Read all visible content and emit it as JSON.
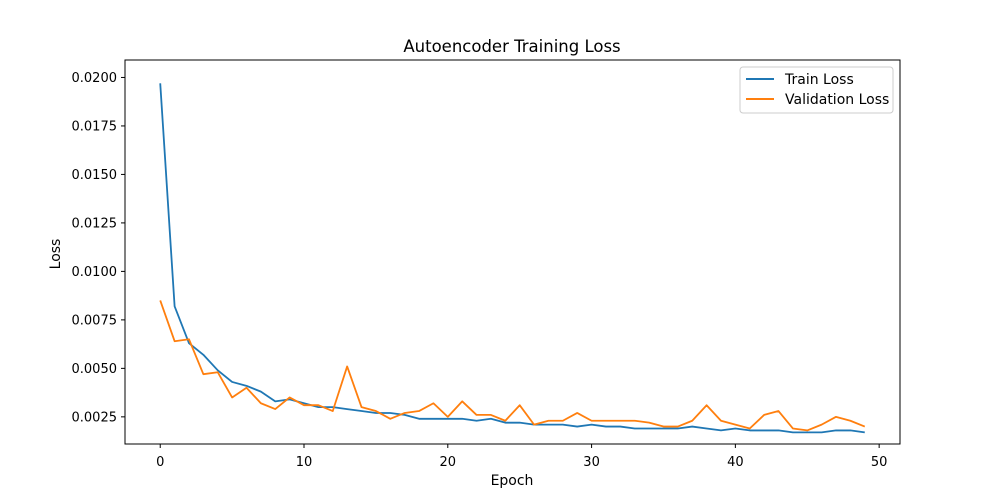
{
  "chart_data": {
    "type": "line",
    "title": "Autoencoder Training Loss",
    "xlabel": "Epoch",
    "ylabel": "Loss",
    "xlim": [
      -2.45,
      51.45
    ],
    "ylim": [
      0.0011,
      0.0209
    ],
    "xticks": [
      0,
      10,
      20,
      30,
      40,
      50
    ],
    "xtick_labels": [
      "0",
      "10",
      "20",
      "30",
      "40",
      "50"
    ],
    "yticks": [
      0.0025,
      0.005,
      0.0075,
      0.01,
      0.0125,
      0.015,
      0.0175,
      0.02
    ],
    "ytick_labels": [
      "0.0025",
      "0.0050",
      "0.0075",
      "0.0100",
      "0.0125",
      "0.0150",
      "0.0175",
      "0.0200"
    ],
    "grid": false,
    "legend": "top-right",
    "x": [
      0,
      1,
      2,
      3,
      4,
      5,
      6,
      7,
      8,
      9,
      10,
      11,
      12,
      13,
      14,
      15,
      16,
      17,
      18,
      19,
      20,
      21,
      22,
      23,
      24,
      25,
      26,
      27,
      28,
      29,
      30,
      31,
      32,
      33,
      34,
      35,
      36,
      37,
      38,
      39,
      40,
      41,
      42,
      43,
      44,
      45,
      46,
      47,
      48,
      49
    ],
    "series": [
      {
        "name": "Train Loss",
        "color": "#1f77b4",
        "values": [
          0.0197,
          0.0082,
          0.0063,
          0.0057,
          0.0049,
          0.0043,
          0.0041,
          0.0038,
          0.0033,
          0.0034,
          0.0032,
          0.003,
          0.003,
          0.0029,
          0.0028,
          0.0027,
          0.0027,
          0.0026,
          0.0024,
          0.0024,
          0.0024,
          0.0024,
          0.0023,
          0.0024,
          0.0022,
          0.0022,
          0.0021,
          0.0021,
          0.0021,
          0.002,
          0.0021,
          0.002,
          0.002,
          0.0019,
          0.0019,
          0.0019,
          0.0019,
          0.002,
          0.0019,
          0.0018,
          0.0019,
          0.0018,
          0.0018,
          0.0018,
          0.0017,
          0.0017,
          0.0017,
          0.0018,
          0.0018,
          0.0017
        ]
      },
      {
        "name": "Validation Loss",
        "color": "#ff7f0e",
        "values": [
          0.0085,
          0.0064,
          0.0065,
          0.0047,
          0.0048,
          0.0035,
          0.004,
          0.0032,
          0.0029,
          0.0035,
          0.0031,
          0.0031,
          0.0028,
          0.0051,
          0.003,
          0.0028,
          0.0024,
          0.0027,
          0.0028,
          0.0032,
          0.0025,
          0.0033,
          0.0026,
          0.0026,
          0.0023,
          0.0031,
          0.0021,
          0.0023,
          0.0023,
          0.0027,
          0.0023,
          0.0023,
          0.0023,
          0.0023,
          0.0022,
          0.002,
          0.002,
          0.0023,
          0.0031,
          0.0023,
          0.0021,
          0.0019,
          0.0026,
          0.0028,
          0.0019,
          0.0018,
          0.0021,
          0.0025,
          0.0023,
          0.002
        ]
      }
    ]
  }
}
